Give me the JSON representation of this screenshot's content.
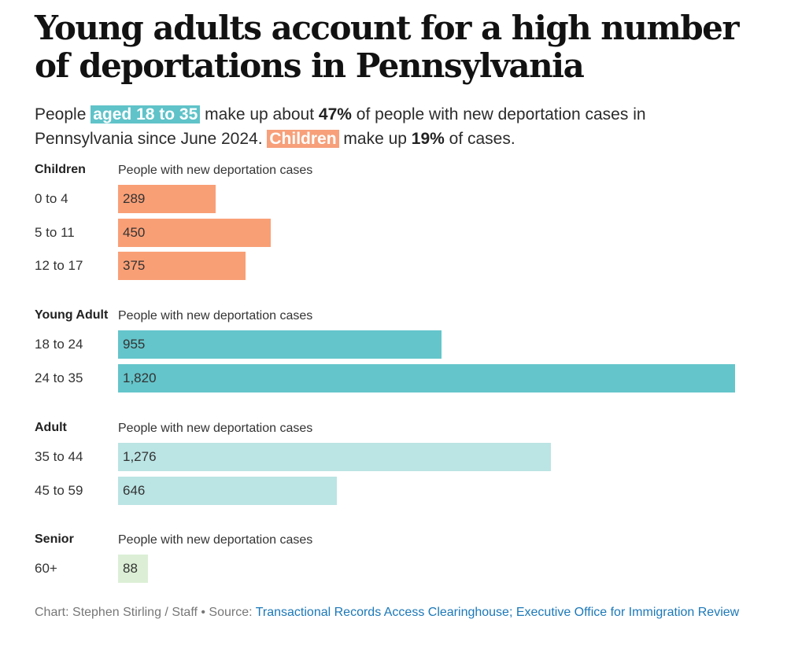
{
  "title": "Young adults account for a high number of deportations in Pennsylvania",
  "subtitle": {
    "p1": "People",
    "hl1": "aged 18 to 35",
    "p2": "make up about",
    "b1": "47%",
    "p3": "of people with new deportation cases in Pennsylvania since June 2024.",
    "hl2": "Children",
    "p4": "make up",
    "b2": "19%",
    "p5": "of cases."
  },
  "colors": {
    "children": "#f99f76",
    "young_adult": "#64c5cb",
    "adult": "#bbe4e4",
    "senior": "#dcefd6"
  },
  "chart_data": {
    "type": "bar",
    "orientation": "horizontal",
    "xmax": 1820,
    "column_header": "People with new deportation cases",
    "groups": [
      {
        "name": "Children",
        "color_key": "children",
        "rows": [
          {
            "label": "0 to 4",
            "value": 289,
            "display": "289"
          },
          {
            "label": "5 to 11",
            "value": 450,
            "display": "450"
          },
          {
            "label": "12 to 17",
            "value": 375,
            "display": "375"
          }
        ]
      },
      {
        "name": "Young Adult",
        "color_key": "young_adult",
        "rows": [
          {
            "label": "18 to 24",
            "value": 955,
            "display": "955"
          },
          {
            "label": "24 to 35",
            "value": 1820,
            "display": "1,820"
          }
        ]
      },
      {
        "name": "Adult",
        "color_key": "adult",
        "rows": [
          {
            "label": "35 to 44",
            "value": 1276,
            "display": "1,276"
          },
          {
            "label": "45 to 59",
            "value": 646,
            "display": "646"
          }
        ]
      },
      {
        "name": "Senior",
        "color_key": "senior",
        "rows": [
          {
            "label": "60+",
            "value": 88,
            "display": "88"
          }
        ]
      }
    ]
  },
  "footer": {
    "credit": "Chart: Stephen Stirling / Staff • Source:",
    "source": "Transactional Records Access Clearinghouse; Executive Office for Immigration Review"
  }
}
